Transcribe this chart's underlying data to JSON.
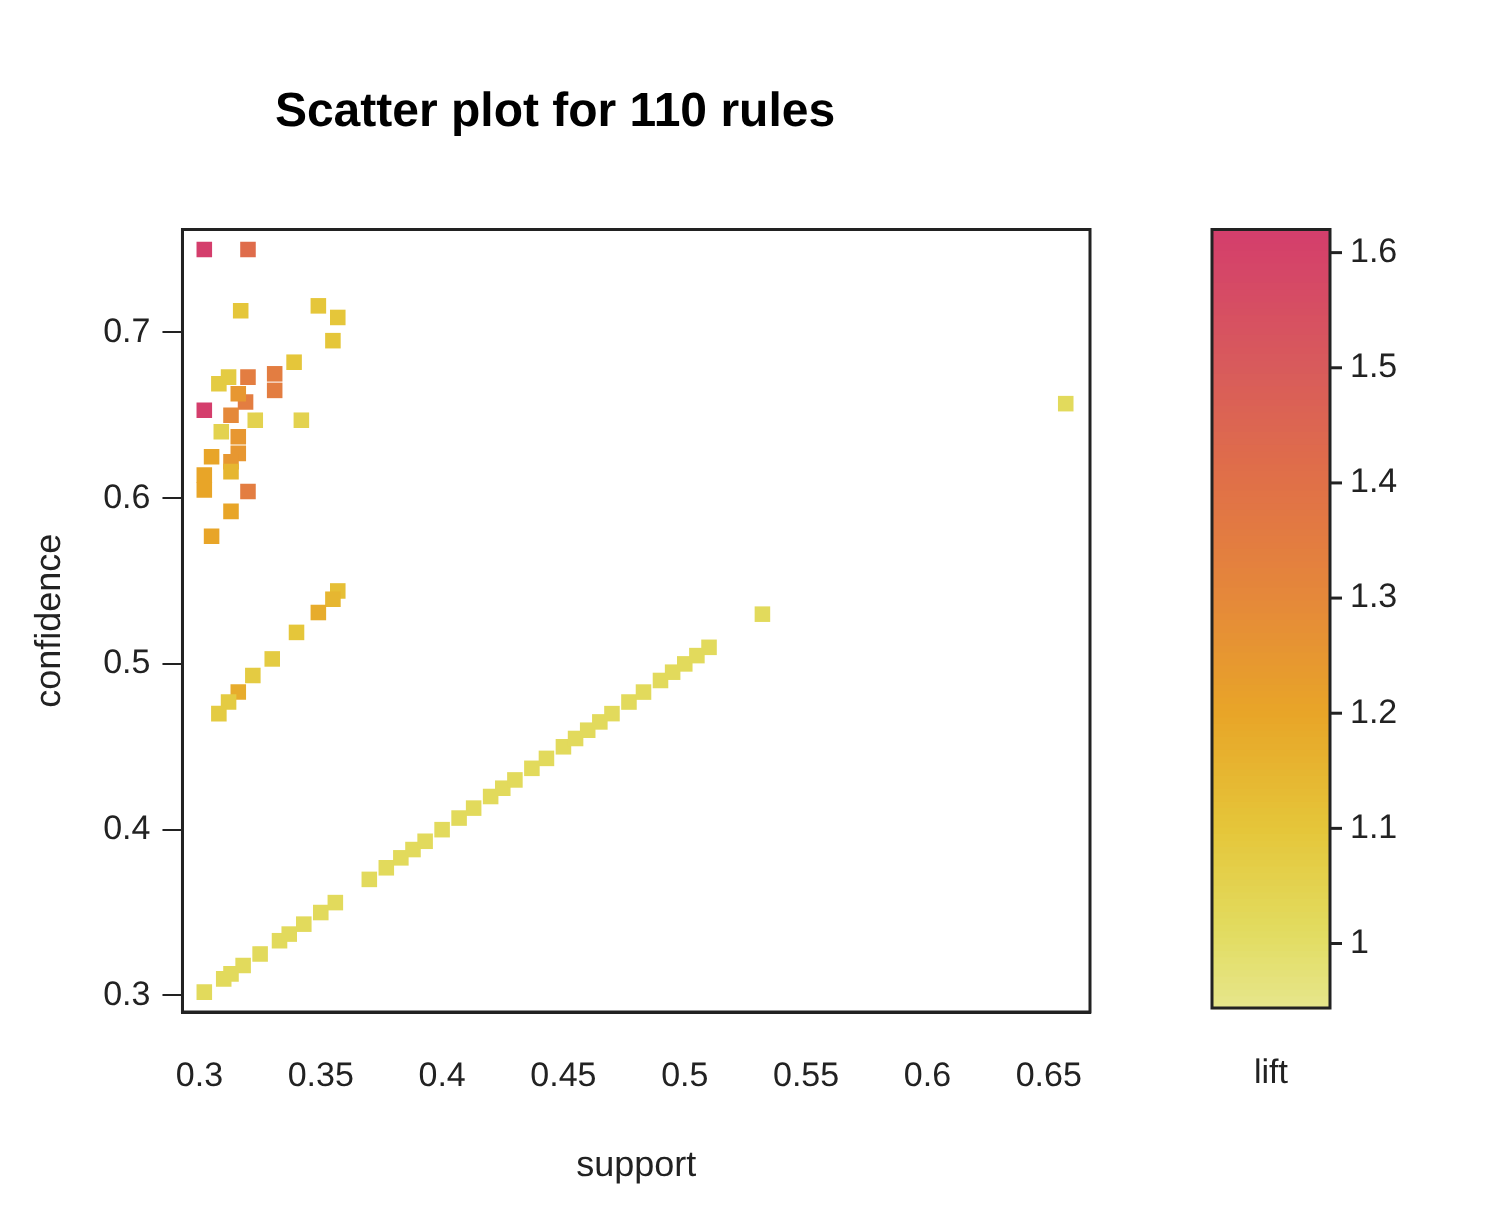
{
  "chart_data": {
    "type": "scatter",
    "title": "Scatter plot for 110 rules",
    "xlabel": "support",
    "ylabel": "confidence",
    "clabel": "lift",
    "marker": "square",
    "grid": false,
    "legend": false,
    "xlim": [
      0.293,
      0.667
    ],
    "xticks": [
      0.3,
      0.35,
      0.4,
      0.45,
      0.5,
      0.55,
      0.6,
      0.65
    ],
    "ylim": [
      0.29,
      0.762
    ],
    "yticks": [
      0.3,
      0.4,
      0.5,
      0.6,
      0.7
    ],
    "clim": [
      0.944,
      1.62
    ],
    "cticks": [
      1,
      1.1,
      1.2,
      1.3,
      1.4,
      1.5,
      1.6
    ],
    "x": [
      0.302,
      0.32,
      0.317,
      0.349,
      0.357,
      0.355,
      0.339,
      0.331,
      0.331,
      0.32,
      0.312,
      0.308,
      0.302,
      0.319,
      0.316,
      0.313,
      0.323,
      0.342,
      0.309,
      0.316,
      0.316,
      0.305,
      0.313,
      0.302,
      0.313,
      0.302,
      0.32,
      0.313,
      0.305,
      0.357,
      0.355,
      0.349,
      0.34,
      0.33,
      0.322,
      0.316,
      0.312,
      0.308,
      0.302,
      0.31,
      0.313,
      0.318,
      0.325,
      0.333,
      0.337,
      0.343,
      0.35,
      0.356,
      0.37,
      0.377,
      0.383,
      0.388,
      0.393,
      0.4,
      0.407,
      0.413,
      0.42,
      0.425,
      0.43,
      0.437,
      0.443,
      0.45,
      0.455,
      0.46,
      0.465,
      0.47,
      0.477,
      0.483,
      0.49,
      0.495,
      0.5,
      0.505,
      0.51,
      0.532,
      0.657
    ],
    "values": [
      0.75,
      0.75,
      0.713,
      0.716,
      0.709,
      0.695,
      0.682,
      0.675,
      0.665,
      0.673,
      0.673,
      0.669,
      0.653,
      0.658,
      0.663,
      0.65,
      0.647,
      0.647,
      0.64,
      0.637,
      0.627,
      0.625,
      0.622,
      0.614,
      0.616,
      0.605,
      0.604,
      0.592,
      0.577,
      0.544,
      0.539,
      0.531,
      0.519,
      0.503,
      0.493,
      0.483,
      0.477,
      0.47,
      0.302,
      0.31,
      0.313,
      0.318,
      0.325,
      0.333,
      0.337,
      0.343,
      0.35,
      0.356,
      0.37,
      0.377,
      0.383,
      0.388,
      0.393,
      0.4,
      0.407,
      0.413,
      0.42,
      0.425,
      0.43,
      0.437,
      0.443,
      0.45,
      0.455,
      0.46,
      0.465,
      0.47,
      0.477,
      0.483,
      0.49,
      0.495,
      0.5,
      0.505,
      0.51,
      0.53,
      0.657
    ],
    "cvalues": [
      1.62,
      1.42,
      1.1,
      1.1,
      1.1,
      1.1,
      1.1,
      1.35,
      1.35,
      1.35,
      1.08,
      1.08,
      1.62,
      1.35,
      1.25,
      1.3,
      1.05,
      1.05,
      1.05,
      1.25,
      1.25,
      1.2,
      1.25,
      1.2,
      1.15,
      1.2,
      1.35,
      1.2,
      1.2,
      1.12,
      1.15,
      1.18,
      1.1,
      1.08,
      1.08,
      1.18,
      1.08,
      1.08,
      1.02,
      1.02,
      1.02,
      1.02,
      1.02,
      1.02,
      1.02,
      1.02,
      1.02,
      1.02,
      1.02,
      1.02,
      1.02,
      1.02,
      1.02,
      1.02,
      1.02,
      1.02,
      1.02,
      1.02,
      1.02,
      1.02,
      1.02,
      1.02,
      1.02,
      1.02,
      1.02,
      1.02,
      1.02,
      1.02,
      1.02,
      1.02,
      1.02,
      1.02,
      1.02,
      1.02,
      1.02
    ]
  }
}
